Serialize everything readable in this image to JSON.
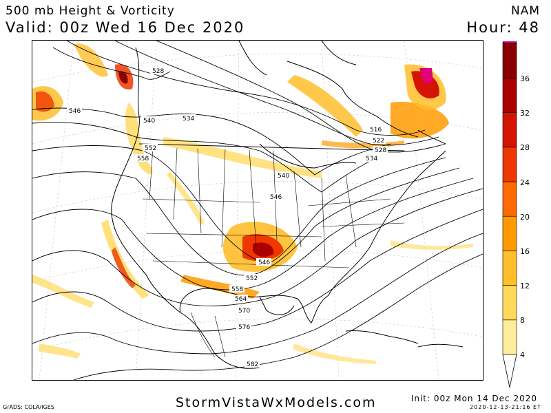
{
  "header": {
    "title": "500 mb Height & Vorticity",
    "model": "NAM",
    "valid": "Valid: 00z Wed 16 Dec 2020",
    "hour": "Hour: 48"
  },
  "map": {
    "contour_labels": [
      "528",
      "546",
      "540",
      "534",
      "552",
      "558",
      "540",
      "546",
      "516",
      "522",
      "528",
      "534",
      "546",
      "552",
      "558",
      "564",
      "570",
      "576",
      "582"
    ]
  },
  "colorbar": {
    "ticks": [
      "36",
      "32",
      "28",
      "24",
      "20",
      "16",
      "12",
      "8",
      "4"
    ],
    "colors": [
      "#ffee99",
      "#ffd95a",
      "#ffbe2a",
      "#ff9a00",
      "#ff6a00",
      "#ee3800",
      "#d41400",
      "#aa0000",
      "#8a0000",
      "#e0007a"
    ]
  },
  "footer": {
    "credit": "StormVistaWxModels.com",
    "grads": "GrADS: COLA/IGES",
    "init": "Init: 00z Mon 14 Dec 2020",
    "timestamp": "2020-12-13-21:16 ET"
  }
}
